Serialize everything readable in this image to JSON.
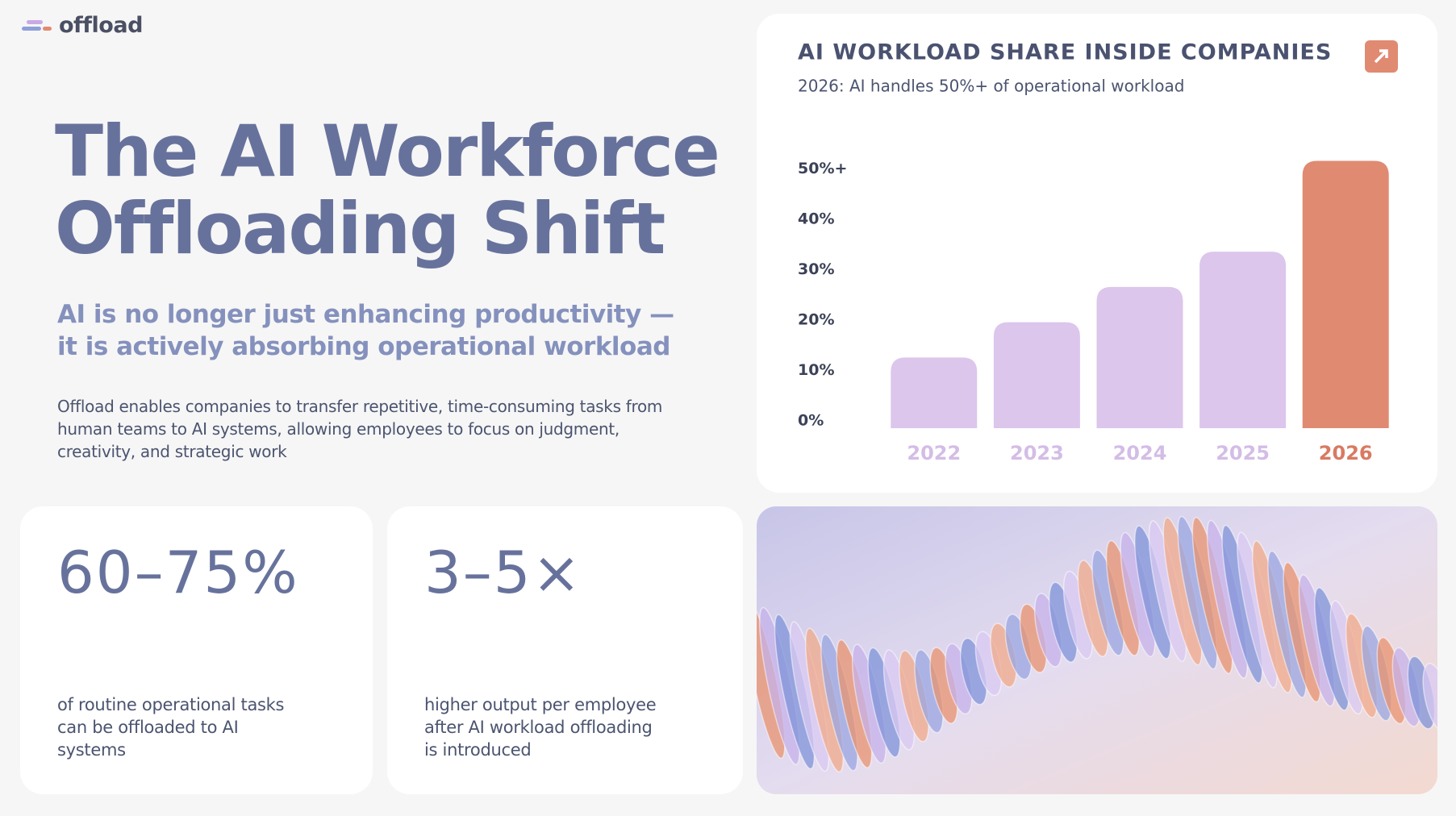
{
  "logo": {
    "text": "offload"
  },
  "hero": {
    "title_lines": [
      "The AI Workforce",
      "Offloading Shift"
    ],
    "subtitle_lines": [
      "AI is no longer just enhancing productivity —",
      "it is actively absorbing operational workload"
    ],
    "body_lines": [
      "Offload enables companies to transfer repetitive, time-consuming tasks from",
      "human teams to AI systems, allowing employees to focus on judgment,",
      "creativity, and strategic work"
    ]
  },
  "stats": [
    {
      "value": "60–75%",
      "description_lines": [
        "of routine operational tasks",
        "can be offloaded to AI",
        "systems"
      ]
    },
    {
      "value": "3–5×",
      "description_lines": [
        "higher output per employee",
        "after AI workload offloading",
        "is introduced"
      ]
    }
  ],
  "chart_data": {
    "type": "bar",
    "title": "AI WORKLOAD SHARE INSIDE COMPANIES",
    "subtitle": "2026: AI handles 50%+ of operational workload",
    "categories": [
      "2022",
      "2023",
      "2024",
      "2025",
      "2026"
    ],
    "values": [
      14,
      21,
      28,
      35,
      53
    ],
    "colors": [
      "#dcc6ec",
      "#dcc6ec",
      "#dcc6ec",
      "#dcc6ec",
      "#e08a72"
    ],
    "label_colors": [
      "#d3bde6",
      "#d3bde6",
      "#d3bde6",
      "#d3bde6",
      "#d97a62"
    ],
    "ylim": [
      0,
      55
    ],
    "yticks": [
      {
        "value": 0,
        "label": "0%"
      },
      {
        "value": 10,
        "label": "10%"
      },
      {
        "value": 20,
        "label": "20%"
      },
      {
        "value": 30,
        "label": "30%"
      },
      {
        "value": 40,
        "label": "40%"
      },
      {
        "value": 50,
        "label": "50%+"
      }
    ],
    "grid": false
  }
}
